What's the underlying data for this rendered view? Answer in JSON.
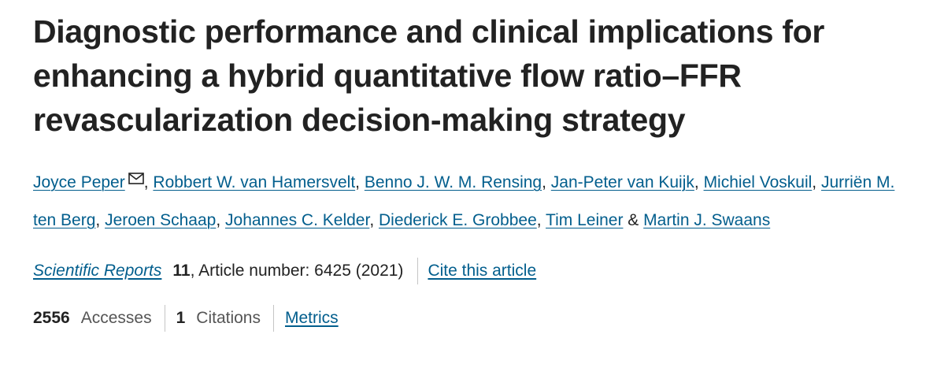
{
  "article": {
    "title": "Diagnostic performance and clinical implications for enhancing a hybrid quantitative flow ratio–FFR revascularization decision-making strategy",
    "authors": [
      {
        "name": "Joyce Peper"
      },
      {
        "name": "Robbert W. van Hamersvelt"
      },
      {
        "name": "Benno J. W. M. Rensing"
      },
      {
        "name": "Jan-Peter van Kuijk"
      },
      {
        "name": "Michiel Voskuil"
      },
      {
        "name": "Jurriën M. ten Berg"
      },
      {
        "name": "Jeroen Schaap"
      },
      {
        "name": "Johannes C. Kelder"
      },
      {
        "name": "Diederick E. Grobbee"
      },
      {
        "name": "Tim Leiner"
      },
      {
        "name": "Martin J. Swaans"
      }
    ],
    "author_separator": ", ",
    "last_author_separator": " & ",
    "corresponding_icon": "mail-icon",
    "journal": "Scientific Reports",
    "volume": "11",
    "article_number": ", Article number: 6425 (2021)",
    "cite_label": "Cite this article",
    "metrics": {
      "accesses_count": "2556",
      "accesses_label": "Accesses",
      "citations_count": "1",
      "citations_label": "Citations",
      "metrics_link": "Metrics"
    }
  },
  "colors": {
    "text": "#222222",
    "link": "#025e8d",
    "muted": "#555555",
    "divider": "#c5c5c5"
  }
}
